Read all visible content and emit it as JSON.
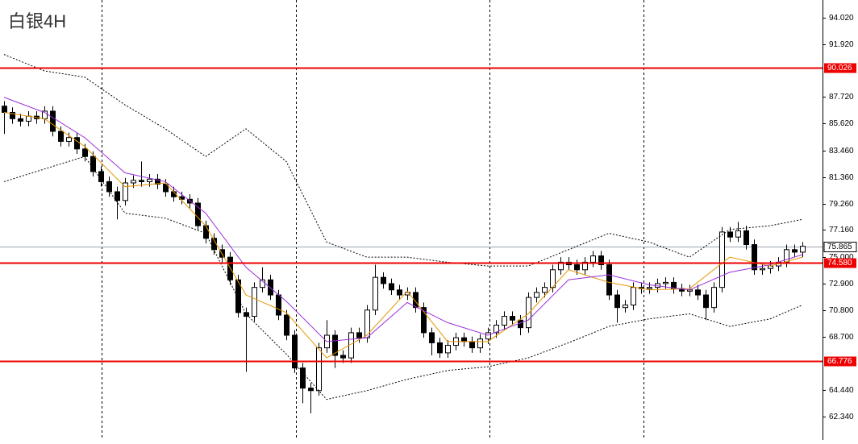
{
  "chart_data": {
    "type": "candlestick",
    "title": "白银4H",
    "ylim": [
      60.48,
      95.43
    ],
    "yticks": [
      {
        "value": 94.02,
        "label": "94.020"
      },
      {
        "value": 91.92,
        "label": "91.920"
      },
      {
        "value": 87.72,
        "label": "87.720"
      },
      {
        "value": 85.62,
        "label": "85.620"
      },
      {
        "value": 83.46,
        "label": "83.460"
      },
      {
        "value": 81.36,
        "label": "81.360"
      },
      {
        "value": 79.26,
        "label": "79.260"
      },
      {
        "value": 77.16,
        "label": "77.160"
      },
      {
        "value": 75.0,
        "label": "75.000"
      },
      {
        "value": 72.9,
        "label": "72.900"
      },
      {
        "value": 70.8,
        "label": "70.800"
      },
      {
        "value": 68.7,
        "label": "68.700"
      },
      {
        "value": 64.44,
        "label": "64.440"
      },
      {
        "value": 62.34,
        "label": "62.340"
      }
    ],
    "open": [
      87.0,
      86.5,
      86.0,
      85.8,
      86.2,
      86.0,
      86.6,
      85.0,
      84.2,
      84.5,
      83.6,
      83.0,
      81.8,
      81.0,
      80.2,
      79.5,
      80.9,
      81.1,
      81.0,
      81.2,
      80.8,
      80.2,
      79.8,
      79.6,
      79.3,
      77.5,
      76.5,
      75.6,
      75.0,
      73.2,
      70.6,
      70.3,
      72.6,
      73.2,
      72.0,
      70.4,
      68.8,
      66.2,
      64.6,
      64.4,
      67.8,
      68.8,
      67.2,
      67.0,
      69.0,
      68.6,
      70.8,
      73.4,
      72.9,
      72.4,
      72.0,
      72.2,
      71.0,
      69.0,
      68.2,
      67.4,
      68.0,
      68.6,
      68.3,
      67.8,
      68.5,
      69.0,
      69.6,
      70.3,
      70.0,
      69.4,
      71.8,
      72.2,
      72.6,
      74.0,
      74.6,
      74.4,
      74.0,
      74.6,
      75.1,
      74.4,
      72.0,
      71.0,
      71.2,
      72.6,
      72.5,
      72.6,
      72.9,
      73.0,
      72.5,
      72.3,
      72.4,
      72.0,
      71.0,
      72.6,
      77.0,
      76.6,
      77.1,
      76.0,
      74.0,
      74.1,
      74.3,
      74.6,
      75.6,
      75.4
    ],
    "high": [
      87.4,
      86.9,
      86.4,
      86.6,
      86.6,
      87.0,
      87.0,
      85.4,
      84.9,
      84.9,
      84.0,
      83.4,
      82.2,
      81.4,
      80.6,
      81.3,
      81.5,
      82.6,
      81.6,
      81.6,
      81.2,
      80.6,
      80.2,
      80.0,
      79.7,
      77.9,
      76.9,
      76.0,
      75.4,
      73.6,
      71.0,
      73.0,
      74.2,
      73.6,
      72.4,
      70.8,
      69.2,
      66.6,
      65.0,
      68.2,
      70.0,
      69.2,
      67.6,
      69.4,
      69.4,
      71.2,
      74.4,
      73.8,
      73.3,
      72.8,
      72.6,
      72.6,
      71.4,
      69.4,
      68.6,
      68.4,
      69.0,
      69.0,
      68.7,
      68.9,
      69.4,
      70.0,
      70.7,
      70.7,
      70.4,
      72.2,
      72.6,
      73.0,
      74.4,
      75.0,
      75.0,
      74.8,
      75.0,
      75.5,
      75.5,
      74.8,
      72.4,
      71.6,
      73.0,
      73.0,
      73.0,
      73.3,
      73.4,
      73.4,
      72.9,
      72.8,
      72.8,
      72.4,
      73.0,
      77.4,
      77.4,
      77.8,
      77.5,
      76.4,
      74.5,
      74.7,
      75.0,
      76.0,
      76.0,
      76.2
    ],
    "low": [
      84.8,
      85.6,
      85.4,
      85.4,
      85.6,
      85.6,
      84.6,
      83.8,
      83.8,
      83.2,
      82.6,
      81.4,
      80.6,
      79.8,
      78.0,
      79.1,
      80.5,
      80.6,
      80.6,
      80.4,
      79.8,
      79.4,
      79.2,
      78.9,
      77.1,
      76.1,
      75.2,
      74.6,
      72.8,
      70.2,
      65.9,
      69.9,
      72.2,
      71.6,
      70.0,
      68.4,
      65.8,
      63.4,
      62.6,
      64.0,
      67.4,
      66.2,
      66.6,
      66.6,
      68.2,
      68.2,
      70.4,
      72.5,
      72.0,
      71.6,
      71.6,
      70.6,
      68.6,
      67.2,
      67.0,
      67.0,
      67.6,
      67.9,
      67.4,
      67.4,
      68.1,
      68.6,
      69.2,
      69.6,
      68.8,
      69.0,
      71.4,
      71.8,
      72.2,
      73.6,
      74.0,
      73.6,
      73.6,
      74.2,
      74.0,
      71.6,
      69.8,
      70.6,
      70.8,
      72.1,
      72.1,
      72.2,
      72.5,
      72.1,
      71.9,
      71.9,
      71.6,
      70.0,
      70.6,
      72.2,
      76.2,
      76.2,
      75.6,
      73.6,
      73.6,
      73.7,
      73.9,
      74.2,
      75.0,
      75.0
    ],
    "close": [
      86.5,
      86.0,
      85.8,
      86.2,
      86.0,
      86.6,
      85.0,
      84.2,
      84.5,
      83.6,
      83.0,
      81.8,
      81.0,
      80.2,
      79.5,
      80.9,
      81.1,
      81.0,
      81.2,
      80.8,
      80.2,
      79.8,
      79.6,
      79.3,
      77.5,
      76.5,
      75.6,
      75.0,
      73.2,
      70.6,
      70.3,
      72.6,
      73.2,
      72.0,
      70.4,
      68.8,
      66.2,
      64.6,
      64.4,
      67.8,
      68.8,
      67.2,
      67.0,
      69.0,
      68.6,
      70.8,
      73.4,
      72.9,
      72.4,
      72.0,
      72.2,
      71.0,
      69.0,
      68.2,
      67.4,
      68.0,
      68.6,
      68.3,
      67.8,
      68.5,
      69.0,
      69.6,
      70.3,
      70.0,
      69.4,
      71.8,
      72.2,
      72.6,
      74.0,
      74.6,
      74.4,
      74.0,
      74.6,
      75.1,
      74.4,
      72.0,
      71.0,
      71.2,
      72.6,
      72.5,
      72.6,
      72.9,
      73.0,
      72.5,
      72.3,
      72.4,
      72.0,
      71.0,
      72.6,
      77.0,
      76.6,
      77.1,
      76.0,
      74.0,
      74.1,
      74.3,
      74.6,
      75.6,
      75.4,
      75.865
    ],
    "lines": [
      {
        "color": "#000000",
        "dash": true,
        "x": [
          0,
          5,
          10,
          15,
          20,
          25,
          30,
          35,
          40,
          45,
          50,
          55,
          60,
          65,
          70,
          75,
          80,
          85,
          90,
          95,
          99
        ],
        "values": [
          91.1,
          89.8,
          89.3,
          87.1,
          85.2,
          83.0,
          85.2,
          82.6,
          76.2,
          75.0,
          75.0,
          74.6,
          74.3,
          74.3,
          75.6,
          76.9,
          76.2,
          75.0,
          77.2,
          77.5,
          78.0
        ]
      },
      {
        "color": "#000000",
        "dash": true,
        "x": [
          0,
          5,
          10,
          15,
          20,
          25,
          30,
          35,
          40,
          45,
          50,
          55,
          60,
          65,
          70,
          75,
          80,
          85,
          90,
          95,
          99
        ],
        "values": [
          81.0,
          82.0,
          83.0,
          78.5,
          78.1,
          76.9,
          70.5,
          67.3,
          63.7,
          64.4,
          65.3,
          66.0,
          66.3,
          67.0,
          68.2,
          69.5,
          70.1,
          70.5,
          69.5,
          70.1,
          71.2
        ]
      },
      {
        "color": "#e69500",
        "dash": false,
        "x": [
          0,
          5,
          10,
          15,
          20,
          25,
          30,
          35,
          40,
          45,
          50,
          55,
          60,
          65,
          70,
          75,
          80,
          85,
          90,
          95,
          99
        ],
        "values": [
          86.5,
          86.0,
          83.8,
          80.6,
          80.9,
          77.5,
          72.0,
          70.6,
          67.0,
          68.8,
          72.3,
          68.3,
          68.3,
          70.5,
          74.0,
          73.0,
          72.4,
          72.5,
          75.0,
          74.3,
          75.0
        ]
      },
      {
        "color": "#9b30d9",
        "dash": false,
        "x": [
          0,
          5,
          10,
          15,
          20,
          25,
          30,
          35,
          40,
          45,
          50,
          55,
          60,
          65,
          70,
          75,
          80,
          85,
          90,
          95,
          99
        ],
        "values": [
          87.7,
          86.5,
          84.5,
          81.7,
          81.0,
          78.5,
          74.2,
          71.5,
          68.3,
          68.6,
          71.4,
          69.8,
          68.8,
          70.0,
          73.2,
          73.6,
          72.8,
          72.4,
          73.8,
          74.4,
          75.2
        ]
      }
    ],
    "hlines": [
      {
        "value": 90.026,
        "label": "90.026",
        "color": "#ee0000"
      },
      {
        "value": 74.58,
        "label": "74.580",
        "color": "#ee0000"
      },
      {
        "value": 66.776,
        "label": "66.776",
        "color": "#ee0000"
      }
    ],
    "price_line": {
      "value": 75.865,
      "label": "75.865",
      "color": "#9aa5b1"
    }
  }
}
